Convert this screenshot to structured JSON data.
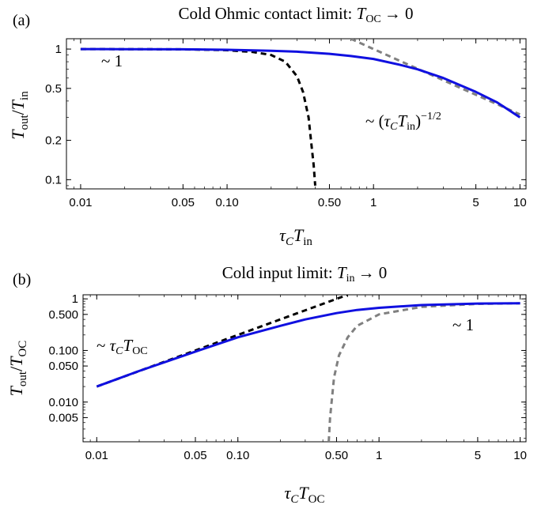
{
  "chart_data": [
    {
      "type": "line",
      "panel_label": "(a)",
      "title": "Cold Ohmic contact limit: T_OC → 0",
      "title_plain": "Cold Ohmic contact limit: ",
      "title_var": "T",
      "title_sub": "OC",
      "title_rel": "→ 0",
      "xlabel": "τ_C T_in",
      "ylabel": "T_out/T_in",
      "x_scale": "log",
      "y_scale": "log",
      "xlim": [
        0.008,
        11
      ],
      "ylim": [
        0.085,
        1.2
      ],
      "x_ticks": [
        0.01,
        0.05,
        0.1,
        0.5,
        1,
        5,
        10
      ],
      "x_tick_labels": [
        "0.01",
        "0.05",
        "0.10",
        "0.50",
        "1",
        "5",
        "10"
      ],
      "y_ticks": [
        0.1,
        0.2,
        0.5,
        1
      ],
      "y_tick_labels": [
        "0.1",
        "0.2",
        "0.5",
        "1"
      ],
      "annotations": [
        "~ 1",
        "~ (τ_C T_in)^{-1/2}"
      ],
      "series": [
        {
          "color": "#1010e0",
          "style": "solid",
          "x": [
            0.01,
            0.02,
            0.05,
            0.1,
            0.2,
            0.3,
            0.5,
            0.7,
            1,
            1.5,
            2,
            3,
            5,
            7,
            10
          ],
          "y": [
            1.0,
            0.999,
            0.995,
            0.988,
            0.97,
            0.955,
            0.92,
            0.885,
            0.84,
            0.76,
            0.7,
            0.6,
            0.47,
            0.39,
            0.3
          ]
        },
        {
          "color": "#000000",
          "style": "dashed",
          "x": [
            0.01,
            0.05,
            0.1,
            0.15,
            0.2,
            0.25,
            0.3,
            0.33,
            0.36,
            0.38,
            0.39,
            0.4
          ],
          "y": [
            1.0,
            0.995,
            0.98,
            0.95,
            0.9,
            0.8,
            0.62,
            0.47,
            0.3,
            0.17,
            0.13,
            0.09
          ]
        },
        {
          "color": "#808080",
          "style": "dashed",
          "x": [
            0.7,
            1,
            2,
            5,
            10
          ],
          "y": [
            1.2,
            1.0,
            0.707,
            0.447,
            0.316
          ]
        }
      ]
    },
    {
      "type": "line",
      "panel_label": "(b)",
      "title": "Cold input limit: T_in → 0",
      "title_plain": "Cold input limit: ",
      "title_var": "T",
      "title_sub": "in",
      "title_rel": "→ 0",
      "xlabel": "τ_C T_OC",
      "ylabel": "T_out/T_OC",
      "x_scale": "log",
      "y_scale": "log",
      "xlim": [
        0.008,
        11
      ],
      "ylim": [
        0.0017,
        1.2
      ],
      "x_ticks": [
        0.01,
        0.05,
        0.1,
        0.5,
        1,
        5,
        10
      ],
      "x_tick_labels": [
        "0.01",
        "0.05",
        "0.10",
        "0.50",
        "1",
        "5",
        "10"
      ],
      "y_ticks": [
        0.005,
        0.01,
        0.05,
        0.1,
        0.5,
        1
      ],
      "y_tick_labels": [
        "0.005",
        "0.010",
        "0.050",
        "0.100",
        "0.500",
        "1"
      ],
      "annotations": [
        "~ τ_C T_OC",
        "~ 1"
      ],
      "series": [
        {
          "color": "#1010e0",
          "style": "solid",
          "x": [
            0.01,
            0.02,
            0.05,
            0.1,
            0.2,
            0.3,
            0.5,
            0.7,
            1,
            2,
            5,
            10
          ],
          "y": [
            0.02,
            0.04,
            0.095,
            0.18,
            0.3,
            0.4,
            0.53,
            0.61,
            0.67,
            0.76,
            0.81,
            0.82
          ]
        },
        {
          "color": "#000000",
          "style": "dashed",
          "x": [
            0.01,
            0.1,
            0.6
          ],
          "y": [
            0.02,
            0.2,
            1.2
          ]
        },
        {
          "color": "#808080",
          "style": "dashed",
          "x": [
            0.44,
            0.45,
            0.48,
            0.52,
            0.6,
            0.7,
            1,
            2,
            5,
            10
          ],
          "y": [
            0.0017,
            0.005,
            0.03,
            0.08,
            0.18,
            0.3,
            0.5,
            0.7,
            0.8,
            0.82
          ]
        }
      ]
    }
  ]
}
